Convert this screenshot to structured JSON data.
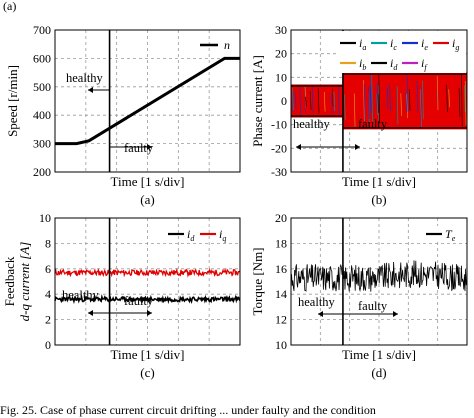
{
  "top_fragment": "(a)",
  "caption": "Fig. 25.   Case of phase current circuit drifting ... under faulty and the condition",
  "colors": {
    "black": "#000000",
    "red": "#e00000",
    "grid": "#9a9a9a",
    "ia": "#000000",
    "ic": "#00a0a0",
    "ie": "#1030d0",
    "ig": "#e00000",
    "ib": "#e8a020",
    "id": "#000000",
    "if": "#c020c0"
  },
  "chart_data": [
    {
      "type": "line",
      "panel": "(a)",
      "ylabel": "Speed [r/min]",
      "xlabel": "Time [1 s/div]",
      "ylim": [
        200,
        700
      ],
      "yticks": [
        "200",
        "300",
        "400",
        "500",
        "600",
        "700"
      ],
      "grid": true,
      "legend": "top-right",
      "series": [
        {
          "name": "n",
          "x": [
            0,
            0.7,
            1.1,
            5.5,
            6
          ],
          "y": [
            300,
            300,
            310,
            600,
            600
          ]
        }
      ],
      "fault_time": 1.77,
      "annotations": [
        "healthy",
        "faulty"
      ]
    },
    {
      "type": "line",
      "panel": "(b)",
      "ylabel": "Phase current [A]",
      "xlabel": "Time [1 s/div]",
      "ylim": [
        -30,
        30
      ],
      "yticks": [
        "-30",
        "-20",
        "-10",
        "0",
        "10",
        "20",
        "30"
      ],
      "grid": true,
      "legend": "top-right",
      "series": [
        {
          "name": "i_a",
          "legend_sub": "a"
        },
        {
          "name": "i_c",
          "legend_sub": "c"
        },
        {
          "name": "i_e",
          "legend_sub": "e"
        },
        {
          "name": "i_g",
          "legend_sub": "g"
        },
        {
          "name": "i_b",
          "legend_sub": "b"
        },
        {
          "name": "i_d",
          "legend_sub": "d"
        },
        {
          "name": "i_f",
          "legend_sub": "f"
        }
      ],
      "envelope_healthy": [
        -7,
        7
      ],
      "envelope_faulty": [
        -12,
        12
      ],
      "fault_time": 1.77,
      "annotations": [
        "healthy",
        "faulty"
      ]
    },
    {
      "type": "line",
      "panel": "(c)",
      "ylabel": "Feedback",
      "ylabel2": "d-q current [A]",
      "xlabel": "Time [1 s/div]",
      "ylim": [
        0,
        10
      ],
      "yticks": [
        "0",
        "2",
        "4",
        "6",
        "8",
        "10"
      ],
      "grid": true,
      "legend": "top-right",
      "series": [
        {
          "name": "i_d",
          "legend_sub": "d",
          "mean": 3.6
        },
        {
          "name": "i_q",
          "legend_sub": "q",
          "mean": 5.7
        }
      ],
      "fault_time": 1.77,
      "annotations": [
        "healthy",
        "faulty"
      ]
    },
    {
      "type": "line",
      "panel": "(d)",
      "ylabel": "Torque [Nm]",
      "xlabel": "Time [1 s/div]",
      "ylim": [
        10,
        20
      ],
      "yticks": [
        "10",
        "12",
        "14",
        "16",
        "18",
        "20"
      ],
      "grid": true,
      "legend": "top-right",
      "series": [
        {
          "name": "T_e",
          "legend_sub": "e",
          "mean": 15.3
        }
      ],
      "fault_time": 1.77,
      "annotations": [
        "healthy",
        "faulty"
      ]
    }
  ]
}
